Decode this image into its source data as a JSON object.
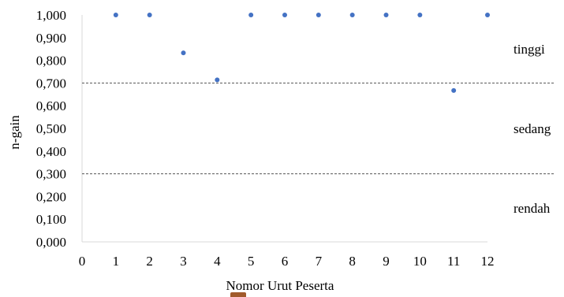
{
  "chart_data": {
    "type": "scatter",
    "title": "",
    "xlabel": "Nomor Urut Peserta",
    "ylabel": "n-gain",
    "xlim": [
      0,
      12
    ],
    "ylim": [
      0,
      1
    ],
    "x_ticks": [
      "0",
      "1",
      "2",
      "3",
      "4",
      "5",
      "6",
      "7",
      "8",
      "9",
      "10",
      "11",
      "12"
    ],
    "y_ticks": [
      "0,000",
      "0,100",
      "0,200",
      "0,300",
      "0,400",
      "0,500",
      "0,600",
      "0,700",
      "0,800",
      "0,900",
      "1,000"
    ],
    "series": [
      {
        "x": [
          1,
          2,
          3,
          4,
          5,
          6,
          7,
          8,
          9,
          10,
          11,
          12
        ],
        "y": [
          1.0,
          1.0,
          0.833,
          0.714,
          1.0,
          1.0,
          1.0,
          1.0,
          1.0,
          1.0,
          0.667,
          1.0
        ],
        "color": "#4472c4"
      }
    ],
    "thresholds": [
      {
        "value": 0.7,
        "style": "dashed"
      },
      {
        "value": 0.3,
        "style": "dashed"
      }
    ],
    "category_labels": [
      {
        "label": "tinggi",
        "y": 0.85
      },
      {
        "label": "sedang",
        "y": 0.5
      },
      {
        "label": "rendah",
        "y": 0.15
      }
    ],
    "grid": false,
    "legend": "none"
  }
}
